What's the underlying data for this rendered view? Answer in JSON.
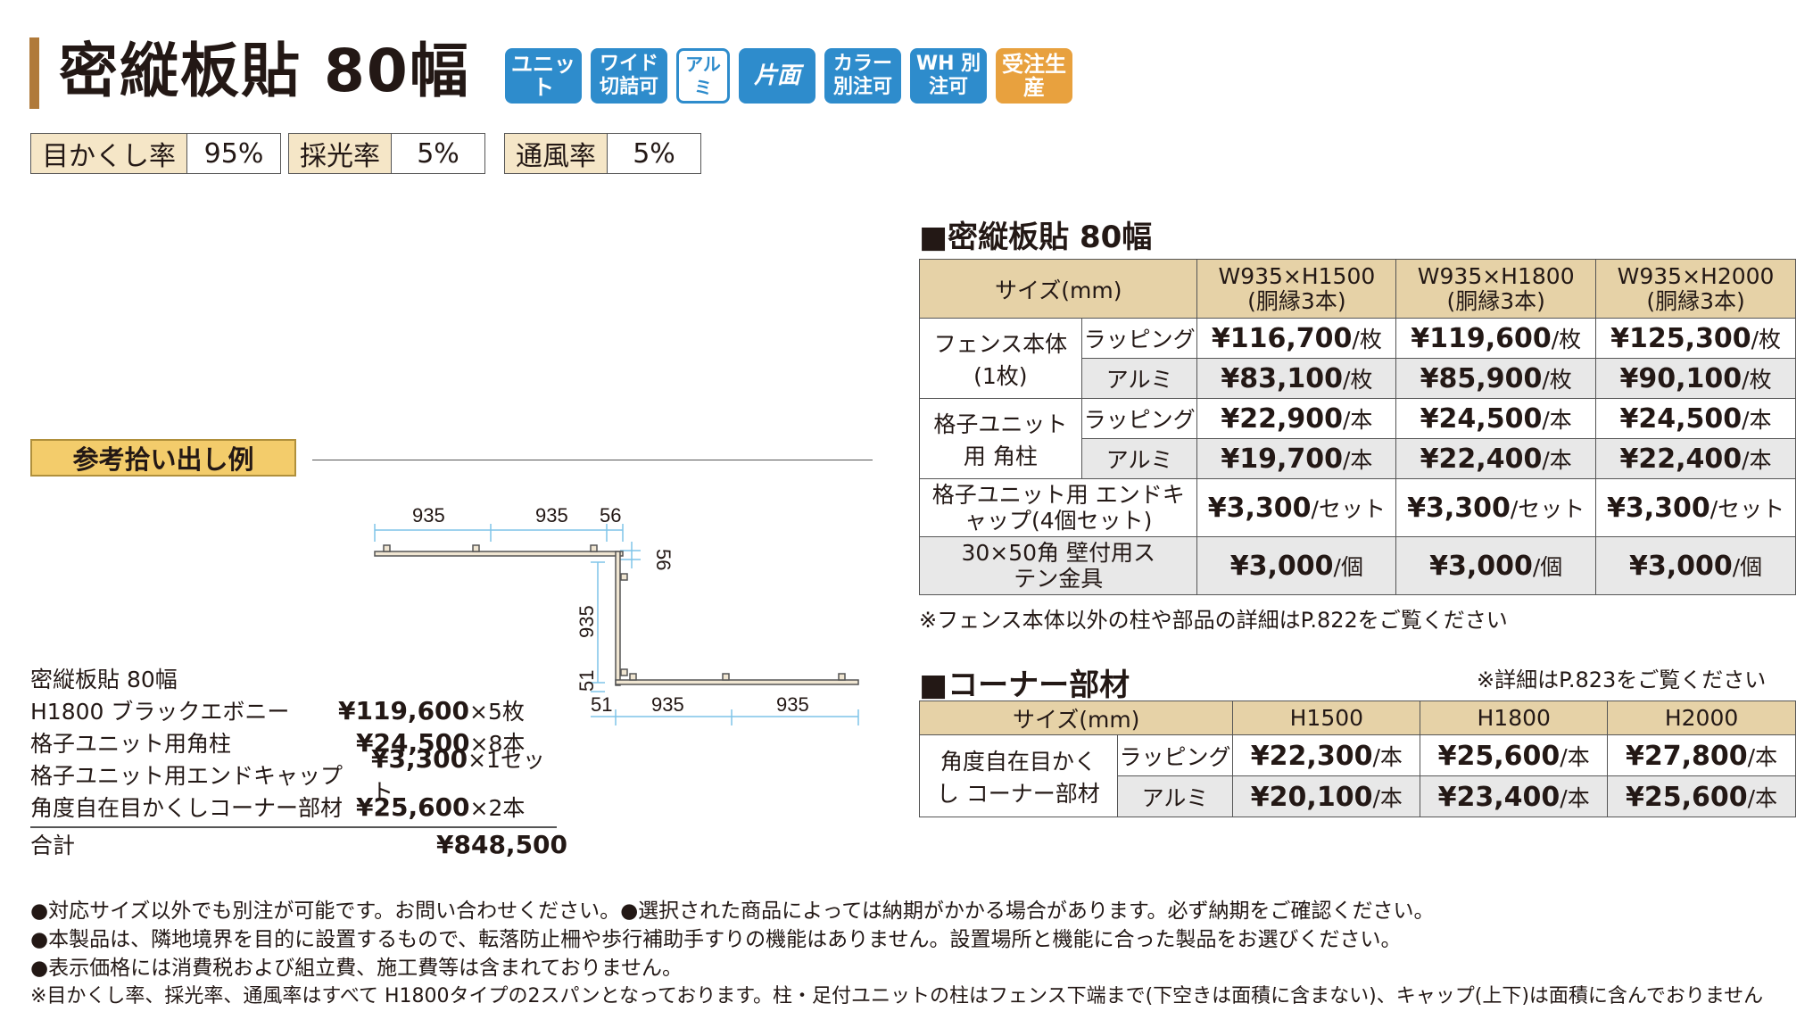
{
  "title": "密縦板貼 80幅",
  "badges": [
    {
      "label": "ユニット"
    },
    {
      "label": "ワイド 切詰可"
    },
    {
      "label": "アルミ"
    },
    {
      "label": "片面"
    },
    {
      "label": "カラー 別注可"
    },
    {
      "label": "WH 別注可"
    },
    {
      "label": "受注生産"
    }
  ],
  "ratings": [
    {
      "label": "目かくし率",
      "value": "95%"
    },
    {
      "label": "採光率",
      "value": "5%"
    },
    {
      "label": "通風率",
      "value": "5%"
    }
  ],
  "sample": {
    "label": "参考拾い出し例",
    "diagram": {
      "dims_top": [
        "935",
        "935",
        "56"
      ],
      "dim_right": "56",
      "dim_vertical": "935",
      "dim_small": "51",
      "dims_bottom": [
        "51",
        "935",
        "935"
      ]
    },
    "name": "密縦板貼 80幅",
    "items": [
      {
        "name": "H1800 ブラックエボニー",
        "price": "¥119,600",
        "qty": "×5枚"
      },
      {
        "name": "格子ユニット用角柱",
        "price": "¥24,500",
        "qty": "×8本"
      },
      {
        "name": "格子ユニット用エンドキャップ",
        "price": "¥3,300",
        "qty": "×1セット"
      },
      {
        "name": "角度自在目かくしコーナー部材",
        "price": "¥25,600",
        "qty": "×2本"
      }
    ],
    "total_label": "合計",
    "total": "¥848,500"
  },
  "main_table": {
    "title": "■密縦板貼 80幅",
    "size_header": "サイズ(mm)",
    "columns": [
      {
        "size": "W935×H1500",
        "note": "(胴縁3本)"
      },
      {
        "size": "W935×H1800",
        "note": "(胴縁3本)"
      },
      {
        "size": "W935×H2000",
        "note": "(胴縁3本)"
      }
    ],
    "groups": [
      {
        "name": "フェンス本体 (1枚)",
        "rows": [
          {
            "sub": "ラッピング",
            "cells": [
              {
                "p": "¥116,700",
                "u": "/枚"
              },
              {
                "p": "¥119,600",
                "u": "/枚"
              },
              {
                "p": "¥125,300",
                "u": "/枚"
              }
            ]
          },
          {
            "sub": "アルミ",
            "cells": [
              {
                "p": "¥83,100",
                "u": "/枚"
              },
              {
                "p": "¥85,900",
                "u": "/枚"
              },
              {
                "p": "¥90,100",
                "u": "/枚"
              }
            ]
          }
        ]
      },
      {
        "name": "格子ユニット用 角柱",
        "rows": [
          {
            "sub": "ラッピング",
            "cells": [
              {
                "p": "¥22,900",
                "u": "/本"
              },
              {
                "p": "¥24,500",
                "u": "/本"
              },
              {
                "p": "¥24,500",
                "u": "/本"
              }
            ]
          },
          {
            "sub": "アルミ",
            "cells": [
              {
                "p": "¥19,700",
                "u": "/本"
              },
              {
                "p": "¥22,400",
                "u": "/本"
              },
              {
                "p": "¥22,400",
                "u": "/本"
              }
            ]
          }
        ]
      }
    ],
    "singles": [
      {
        "name": "格子ユニット用 エンドキャップ(4個セット)",
        "cells": [
          {
            "p": "¥3,300",
            "u": "/セット"
          },
          {
            "p": "¥3,300",
            "u": "/セット"
          },
          {
            "p": "¥3,300",
            "u": "/セット"
          }
        ]
      },
      {
        "name": "30×50角 壁付用ステン金具",
        "cells": [
          {
            "p": "¥3,000",
            "u": "/個"
          },
          {
            "p": "¥3,000",
            "u": "/個"
          },
          {
            "p": "¥3,000",
            "u": "/個"
          }
        ]
      }
    ],
    "note": "※フェンス本体以外の柱や部品の詳細はP.822をご覧ください"
  },
  "corner_table": {
    "title": "■コーナー部材",
    "ref": "※詳細はP.823をご覧ください",
    "size_header": "サイズ(mm)",
    "columns": [
      "H1500",
      "H1800",
      "H2000"
    ],
    "name": "角度自在目かくし コーナー部材",
    "rows": [
      {
        "sub": "ラッピング",
        "cells": [
          {
            "p": "¥22,300",
            "u": "/本"
          },
          {
            "p": "¥25,600",
            "u": "/本"
          },
          {
            "p": "¥27,800",
            "u": "/本"
          }
        ]
      },
      {
        "sub": "アルミ",
        "cells": [
          {
            "p": "¥20,100",
            "u": "/本"
          },
          {
            "p": "¥23,400",
            "u": "/本"
          },
          {
            "p": "¥25,600",
            "u": "/本"
          }
        ]
      }
    ]
  },
  "notes": [
    "●対応サイズ以外でも別注が可能です。お問い合わせください。●選択された商品によっては納期がかかる場合があります。必ず納期をご確認ください。",
    "●本製品は、隣地境界を目的に設置するもので、転落防止柵や歩行補助手すりの機能はありません。設置場所と機能に合った製品をお選びください。",
    "●表示価格には消費税および組立費、施工費等は含まれておりません。",
    "※目かくし率、採光率、通風率はすべて H1800タイプの2スパンとなっております。柱・足付ユニットの柱はフェンス下端まで(下空きは面積に含まない)、キャップ(上下)は面積に含んでおりません"
  ]
}
